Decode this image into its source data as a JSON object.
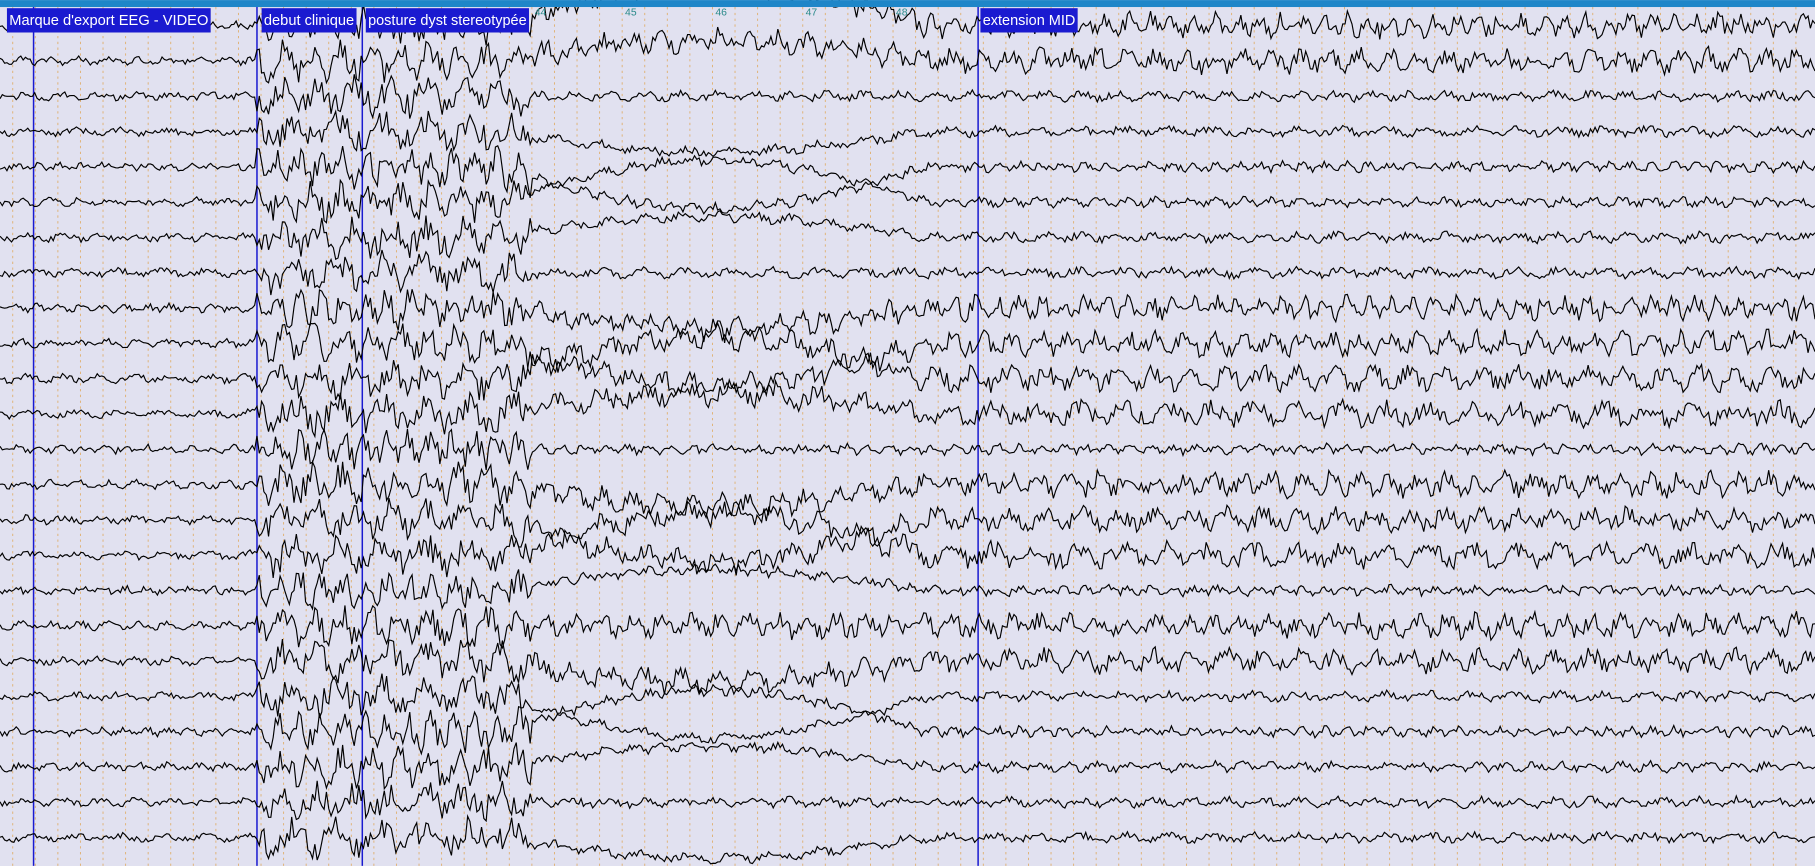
{
  "markers": [
    {
      "label": "Marque d'export EEG - VIDEO"
    },
    {
      "label": "debut clinique"
    },
    {
      "label": "posture dyst stereotypée"
    },
    {
      "label": "extension MID"
    }
  ],
  "time_labels": [
    "44",
    "45",
    "46",
    "47",
    "48"
  ]
}
